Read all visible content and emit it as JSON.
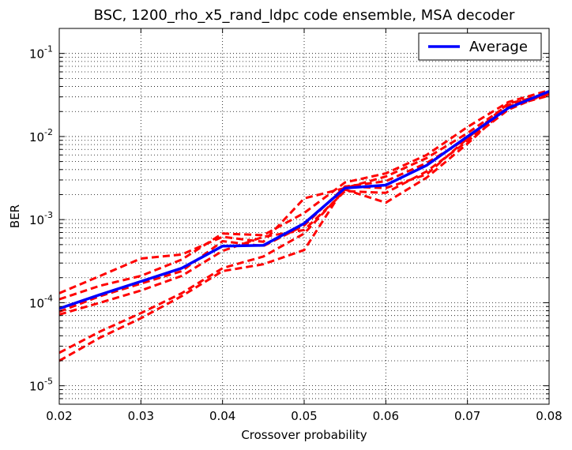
{
  "chart_data": {
    "type": "line",
    "title": "BSC, 1200_rho_x5_rand_ldpc code ensemble, MSA decoder",
    "xlabel": "Crossover probability",
    "ylabel": "BER",
    "xlim": [
      0.02,
      0.08
    ],
    "ylim": [
      6e-06,
      0.2
    ],
    "yscale": "log",
    "grid": true,
    "legend_position": "top-right",
    "xticks": [
      {
        "value": 0.02,
        "label": "0.02"
      },
      {
        "value": 0.03,
        "label": "0.03"
      },
      {
        "value": 0.04,
        "label": "0.04"
      },
      {
        "value": 0.05,
        "label": "0.05"
      },
      {
        "value": 0.06,
        "label": "0.06"
      },
      {
        "value": 0.07,
        "label": "0.07"
      },
      {
        "value": 0.08,
        "label": "0.08"
      }
    ],
    "yticks": [
      {
        "value": 1e-05,
        "base": "10",
        "exp": "-5"
      },
      {
        "value": 0.0001,
        "base": "10",
        "exp": "-4"
      },
      {
        "value": 0.001,
        "base": "10",
        "exp": "-3"
      },
      {
        "value": 0.01,
        "base": "10",
        "exp": "-2"
      },
      {
        "value": 0.1,
        "base": "10",
        "exp": "-1"
      }
    ],
    "x": [
      0.02,
      0.025,
      0.03,
      0.035,
      0.04,
      0.045,
      0.05,
      0.055,
      0.06,
      0.065,
      0.07,
      0.075,
      0.08
    ],
    "series": [
      {
        "name": "Average",
        "color": "#0000ff",
        "style": "solid",
        "values": [
          8.5e-05,
          0.000125,
          0.00018,
          0.00026,
          0.00048,
          0.00049,
          0.0009,
          0.0024,
          0.0026,
          0.0045,
          0.01,
          0.022,
          0.035
        ]
      },
      {
        "color": "#ff0000",
        "style": "dashed",
        "values": [
          0.00013,
          0.00021,
          0.00034,
          0.00038,
          0.00062,
          0.00054,
          0.0018,
          0.0024,
          0.0033,
          0.0055,
          0.011,
          0.024,
          0.034
        ]
      },
      {
        "color": "#ff0000",
        "style": "dashed",
        "values": [
          0.00011,
          0.00016,
          0.00021,
          0.00033,
          0.00068,
          0.00065,
          0.0012,
          0.0028,
          0.0036,
          0.006,
          0.013,
          0.026,
          0.036
        ]
      },
      {
        "color": "#ff0000",
        "style": "dashed",
        "values": [
          7.8e-05,
          0.00012,
          0.00017,
          0.00024,
          0.00055,
          0.00048,
          0.00085,
          0.0025,
          0.0029,
          0.0048,
          0.0095,
          0.022,
          0.033
        ]
      },
      {
        "color": "#ff0000",
        "style": "dashed",
        "values": [
          7.2e-05,
          0.0001,
          0.00014,
          0.00021,
          0.00042,
          0.00062,
          0.00075,
          0.0022,
          0.0021,
          0.0038,
          0.0088,
          0.021,
          0.034
        ]
      },
      {
        "color": "#ff0000",
        "style": "dashed",
        "values": [
          2.5e-05,
          4.5e-05,
          7.5e-05,
          0.00013,
          0.00026,
          0.00036,
          0.00068,
          0.0023,
          0.0016,
          0.0032,
          0.0082,
          0.023,
          0.031
        ]
      },
      {
        "color": "#ff0000",
        "style": "dashed",
        "values": [
          2e-05,
          3.8e-05,
          6.5e-05,
          0.00012,
          0.00024,
          0.00029,
          0.00043,
          0.0025,
          0.0024,
          0.0035,
          0.0095,
          0.025,
          0.032
        ]
      }
    ]
  }
}
